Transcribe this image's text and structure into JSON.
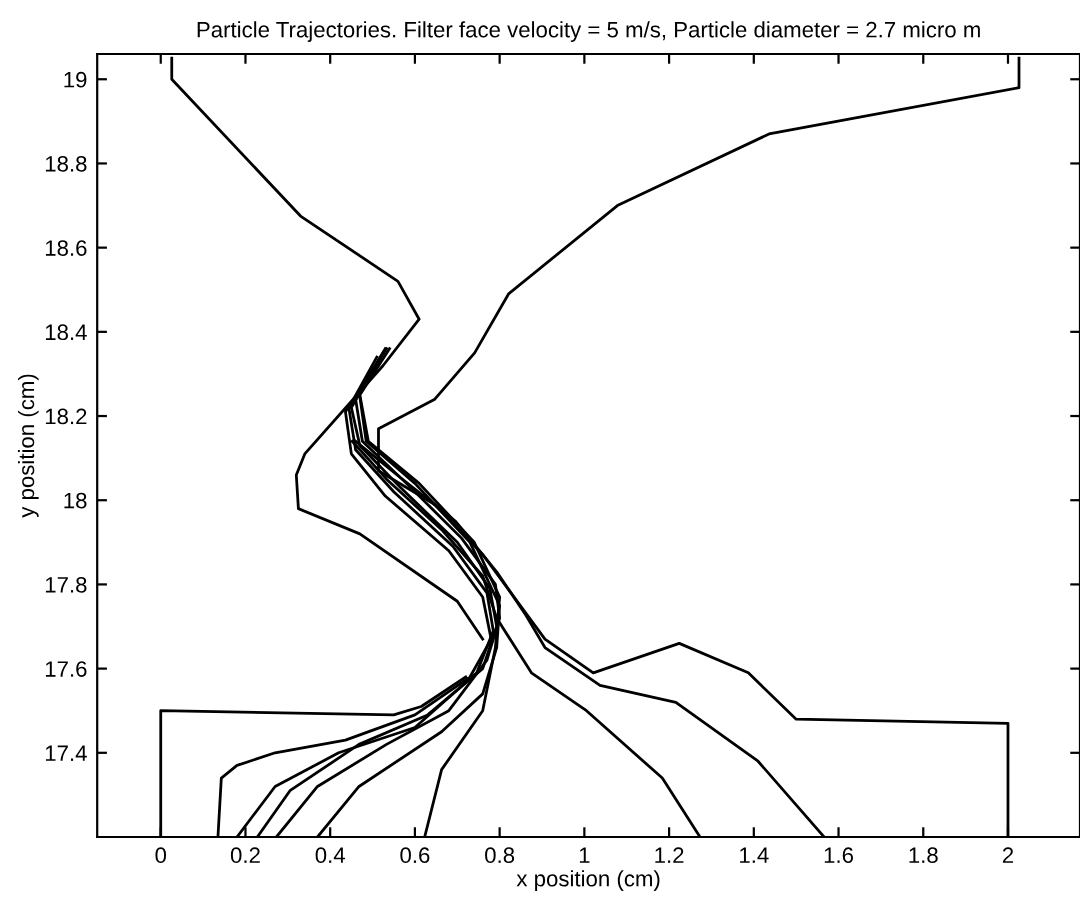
{
  "chart_data": {
    "type": "line",
    "title": "Particle Trajectories. Filter face velocity = 5 m/s, Particle diameter = 2.7 micro m",
    "xlabel": "x position (cm)",
    "ylabel": "y position (cm)",
    "xlim": [
      -0.15,
      2.17
    ],
    "ylim": [
      17.2,
      19.06
    ],
    "xticks": [
      0,
      0.2,
      0.4,
      0.6,
      0.8,
      1,
      1.2,
      1.4,
      1.6,
      1.8,
      2
    ],
    "yticks": [
      17.4,
      17.6,
      17.8,
      18,
      18.2,
      18.4,
      18.6,
      18.8,
      19
    ],
    "grid": false,
    "marker": "none",
    "line_style": "solid",
    "series": [
      {
        "color": "#000000",
        "x": [
          0.026,
          0.026,
          0.33,
          0.56,
          0.61,
          0.525,
          0.34,
          0.32,
          0.325,
          0.47,
          0.7,
          0.76
        ],
        "values": [
          19.05,
          19.0,
          18.675,
          18.52,
          18.43,
          18.32,
          18.11,
          18.06,
          17.98,
          17.92,
          17.76,
          17.67
        ]
      },
      {
        "color": "#000000",
        "x": [
          2.026,
          2.026,
          1.436,
          1.078,
          0.821,
          0.741,
          0.647,
          0.514,
          0.514,
          0.647,
          0.761,
          0.907,
          1.021,
          1.224,
          1.387,
          1.5,
          2.0,
          2.0
        ],
        "values": [
          19.05,
          18.98,
          18.87,
          18.7,
          18.49,
          18.35,
          18.24,
          18.17,
          18.07,
          17.99,
          17.87,
          17.67,
          17.59,
          17.66,
          17.59,
          17.48,
          17.47,
          17.2
        ]
      },
      {
        "color": "#000000",
        "x": [
          0,
          0,
          0.55,
          0.615,
          0.72
        ],
        "values": [
          17.2,
          17.5,
          17.49,
          17.51,
          17.58
        ]
      },
      {
        "color": "#000000",
        "x": [
          0.135,
          0.143,
          0.18,
          0.27,
          0.436,
          0.6,
          0.73,
          0.78,
          0.76,
          0.68,
          0.53,
          0.45,
          0.436,
          0.47,
          0.53
        ],
        "values": [
          17.2,
          17.34,
          17.37,
          17.4,
          17.43,
          17.49,
          17.58,
          17.67,
          17.77,
          17.88,
          18.01,
          18.11,
          18.21,
          18.26,
          18.36
        ]
      },
      {
        "color": "#000000",
        "x": [
          0.18,
          0.27,
          0.42,
          0.6,
          0.746,
          0.785,
          0.77,
          0.69,
          0.55,
          0.46,
          0.444,
          0.51
        ],
        "values": [
          17.2,
          17.32,
          17.4,
          17.46,
          17.59,
          17.69,
          17.78,
          17.89,
          18.02,
          18.12,
          18.22,
          18.34
        ]
      },
      {
        "color": "#000000",
        "x": [
          0.228,
          0.305,
          0.468,
          0.63,
          0.76,
          0.793,
          0.777,
          0.7,
          0.566,
          0.47,
          0.45,
          0.52
        ],
        "values": [
          17.2,
          17.31,
          17.42,
          17.49,
          17.6,
          17.7,
          17.79,
          17.9,
          18.03,
          18.13,
          18.22,
          18.34
        ]
      },
      {
        "color": "#000000",
        "x": [
          0.273,
          0.37,
          0.533,
          0.68,
          0.77,
          0.8,
          0.79,
          0.71,
          0.58,
          0.476,
          0.46,
          0.525
        ],
        "values": [
          17.2,
          17.32,
          17.42,
          17.5,
          17.62,
          17.72,
          17.8,
          17.91,
          18.04,
          18.14,
          18.24,
          18.35
        ]
      },
      {
        "color": "#000000",
        "x": [
          0.37,
          0.468,
          0.663,
          0.76,
          0.793,
          0.8,
          0.73,
          0.6,
          0.485,
          0.468,
          0.533
        ],
        "values": [
          17.2,
          17.32,
          17.45,
          17.54,
          17.65,
          17.75,
          17.9,
          18.04,
          18.14,
          18.26,
          18.36
        ]
      },
      {
        "color": "#000000",
        "x": [
          0.623,
          0.663,
          0.76,
          0.79,
          0.8,
          0.74,
          0.61,
          0.49,
          0.47,
          0.54
        ],
        "values": [
          17.2,
          17.36,
          17.5,
          17.65,
          17.77,
          17.9,
          18.04,
          18.14,
          18.25,
          18.36
        ]
      },
      {
        "color": "#000000",
        "x": [
          1.273,
          1.184,
          1.005,
          0.875,
          0.793,
          0.76,
          0.663,
          0.533,
          0.452
        ],
        "values": [
          17.2,
          17.34,
          17.5,
          17.59,
          17.72,
          17.82,
          17.93,
          18.05,
          18.14
        ]
      },
      {
        "color": "#000000",
        "x": [
          1.566,
          1.41,
          1.216,
          1.037,
          0.907,
          0.86,
          0.793,
          0.696,
          0.558,
          0.46
        ],
        "values": [
          17.2,
          17.38,
          17.52,
          17.56,
          17.65,
          17.73,
          17.83,
          17.95,
          18.06,
          18.14
        ]
      }
    ]
  }
}
